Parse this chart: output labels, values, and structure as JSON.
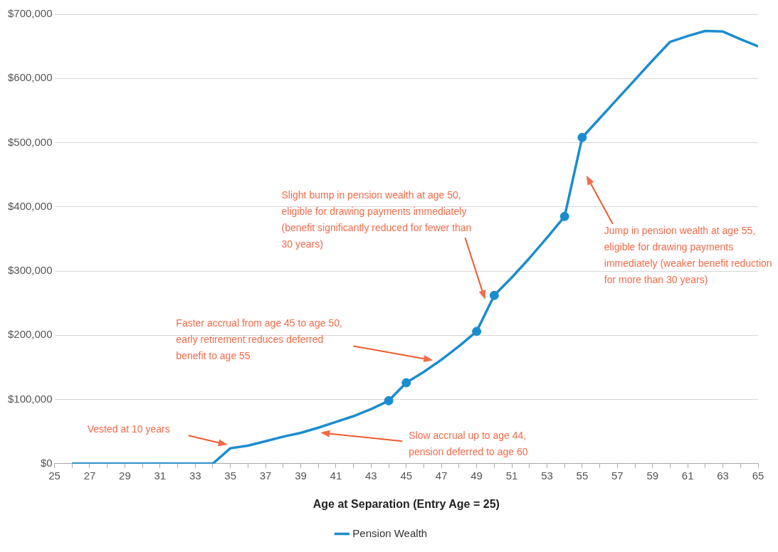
{
  "chart_data": {
    "type": "line",
    "xlabel": "Age at Separation (Entry Age = 25)",
    "x": [
      26,
      27,
      28,
      29,
      30,
      31,
      32,
      33,
      34,
      35,
      36,
      37,
      38,
      39,
      40,
      41,
      42,
      43,
      44,
      45,
      46,
      47,
      48,
      49,
      50,
      51,
      52,
      53,
      54,
      55,
      56,
      57,
      58,
      59,
      60,
      61,
      62,
      63,
      64,
      65
    ],
    "series": [
      {
        "name": "Pension Wealth",
        "color": "#1b8dcf",
        "marker": "none",
        "values": [
          0,
          0,
          0,
          0,
          0,
          0,
          0,
          0,
          0,
          24000,
          28000,
          35000,
          42000,
          48000,
          56000,
          65000,
          74000,
          85000,
          98000,
          126000,
          143000,
          162000,
          183000,
          206000,
          262000,
          290000,
          320000,
          352000,
          385000,
          508000,
          538000,
          568000,
          598000,
          628000,
          657000,
          666000,
          674000,
          673000,
          661000,
          650000
        ]
      },
      {
        "type": "scatter",
        "color": "#1b8dcf",
        "marker": "circle",
        "x": [
          44,
          45,
          49,
          50,
          54,
          55
        ],
        "values": [
          98000,
          126000,
          206000,
          262000,
          385000,
          508000
        ]
      }
    ],
    "xlim": [
      25,
      65
    ],
    "xticks": [
      25,
      {
        "value": 26,
        "label": null
      },
      27,
      {
        "value": 28,
        "label": null
      },
      29,
      {
        "value": 30,
        "label": null
      },
      31,
      {
        "value": 32,
        "label": null
      },
      33,
      {
        "value": 34,
        "label": null
      },
      35,
      {
        "value": 36,
        "label": null
      },
      37,
      {
        "value": 38,
        "label": null
      },
      39,
      {
        "value": 40,
        "label": null
      },
      41,
      {
        "value": 42,
        "label": null
      },
      43,
      {
        "value": 44,
        "label": null
      },
      45,
      {
        "value": 46,
        "label": null
      },
      47,
      {
        "value": 48,
        "label": null
      },
      49,
      {
        "value": 50,
        "label": null
      },
      51,
      {
        "value": 52,
        "label": null
      },
      53,
      {
        "value": 54,
        "label": null
      },
      55,
      {
        "value": 56,
        "label": null
      },
      57,
      {
        "value": 58,
        "label": null
      },
      59,
      {
        "value": 60,
        "label": null
      },
      61,
      {
        "value": 62,
        "label": null
      },
      63,
      {
        "value": 64,
        "label": null
      },
      65
    ],
    "ylim": [
      0,
      700000
    ],
    "yticks": [
      {
        "value": 0,
        "label": "$0"
      },
      {
        "value": 100000,
        "label": "$100,000"
      },
      {
        "value": 200000,
        "label": "$200,000"
      },
      {
        "value": 300000,
        "label": "$300,000"
      },
      {
        "value": 400000,
        "label": "$400,000"
      },
      {
        "value": 500000,
        "label": "$500,000"
      },
      {
        "value": 600000,
        "label": "$600,000"
      },
      {
        "value": 700000,
        "label": "$700,000"
      }
    ],
    "grid": "y",
    "legend": "bottom",
    "annotations": [
      "Vested at 10 years",
      "Slow accrual up to age 44, pension deferred to age 60",
      "Faster accrual from age 45 to age 50, early retirement reduces deferred benefit to age 55",
      "Slight bump in pension wealth at age 50, eligible for drawing payments immediately (benefit significantly reduced for fewer than 30 years)",
      "Jump in pension wealth at age 55, eligible for drawing payments immediately (weaker benefit reduction for more than 30 years)"
    ]
  }
}
